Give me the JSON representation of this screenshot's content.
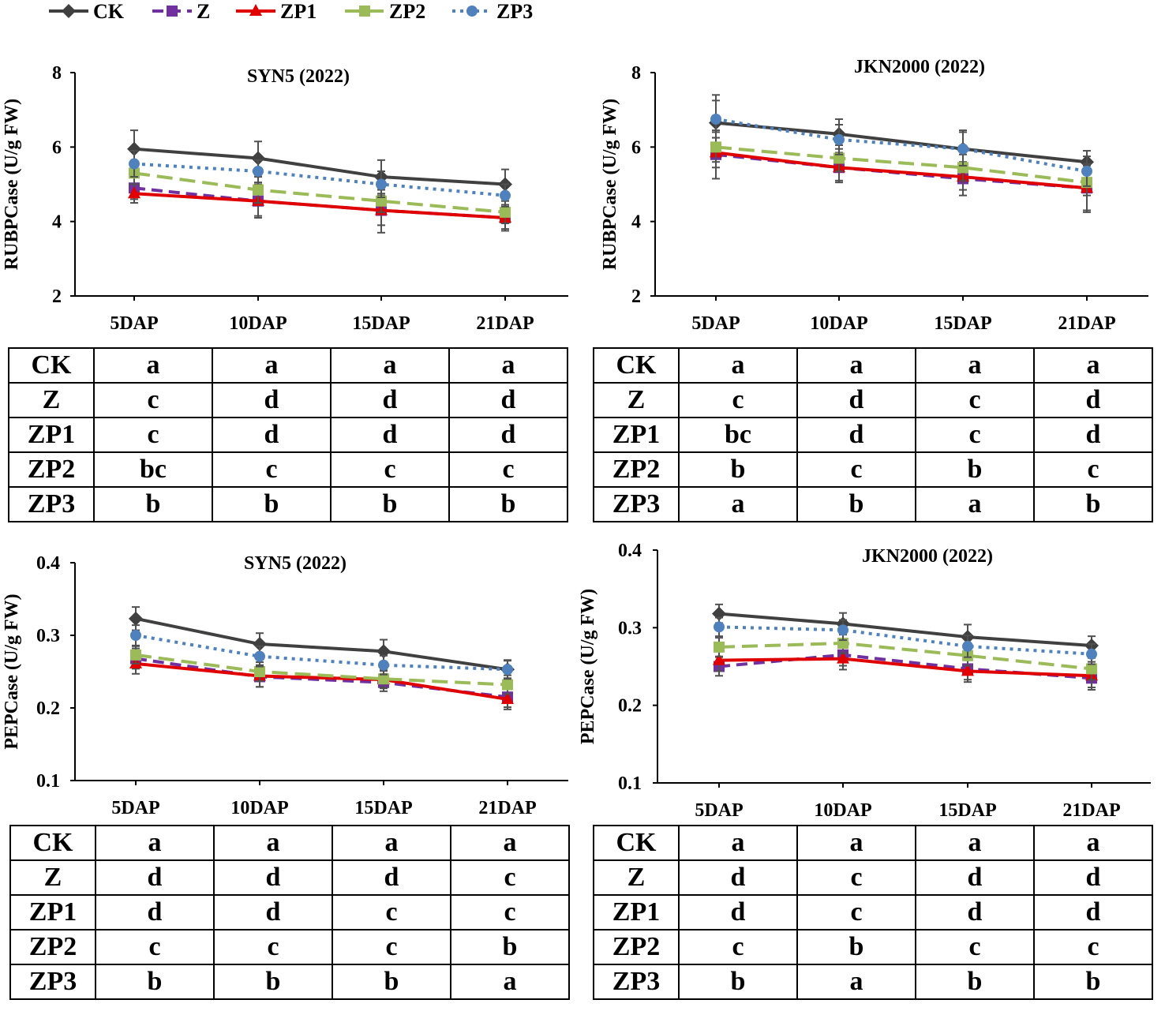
{
  "legend": [
    {
      "name": "CK",
      "color": "#404040",
      "marker": "diamond",
      "dash": "solid"
    },
    {
      "name": "Z",
      "color": "#7030A0",
      "marker": "square",
      "dash": "dash"
    },
    {
      "name": "ZP1",
      "color": "#E00000",
      "marker": "triangle",
      "dash": "solid"
    },
    {
      "name": "ZP2",
      "color": "#9BBB59",
      "marker": "square",
      "dash": "longdash"
    },
    {
      "name": "ZP3",
      "color": "#4F81BD",
      "marker": "circle",
      "dash": "dot"
    }
  ],
  "chart_data": [
    {
      "type": "line",
      "title": "SYN5 (2022)",
      "ylabel": "RUBPCase (U/g FW)",
      "xlabel": "",
      "categories": [
        "5DAP",
        "10DAP",
        "15DAP",
        "21DAP"
      ],
      "ylim": [
        2,
        8
      ],
      "yticks": [
        "2",
        "4",
        "6",
        "8"
      ],
      "series": [
        {
          "name": "CK",
          "values": [
            5.95,
            5.7,
            5.2,
            5.0
          ],
          "errors": [
            0.5,
            0.45,
            0.45,
            0.4
          ]
        },
        {
          "name": "Z",
          "values": [
            4.9,
            4.55,
            4.3,
            4.1
          ],
          "errors": [
            0.3,
            0.4,
            0.4,
            0.3
          ]
        },
        {
          "name": "ZP1",
          "values": [
            4.75,
            4.55,
            4.3,
            4.1
          ],
          "errors": [
            0.25,
            0.45,
            0.6,
            0.35
          ]
        },
        {
          "name": "ZP2",
          "values": [
            5.3,
            4.85,
            4.55,
            4.25
          ],
          "errors": [
            0.3,
            0.35,
            0.3,
            0.3
          ]
        },
        {
          "name": "ZP3",
          "values": [
            5.55,
            5.35,
            5.0,
            4.7
          ],
          "errors": [
            0.35,
            0.3,
            0.35,
            0.3
          ]
        }
      ],
      "letters": {
        "columns": [
          "5DAP",
          "10DAP",
          "15DAP",
          "21DAP"
        ],
        "rows": [
          {
            "label": "CK",
            "values": [
              "a",
              "a",
              "a",
              "a"
            ]
          },
          {
            "label": "Z",
            "values": [
              "c",
              "d",
              "d",
              "d"
            ]
          },
          {
            "label": "ZP1",
            "values": [
              "c",
              "d",
              "d",
              "d"
            ]
          },
          {
            "label": "ZP2",
            "values": [
              "bc",
              "c",
              "c",
              "c"
            ]
          },
          {
            "label": "ZP3",
            "values": [
              "b",
              "b",
              "b",
              "b"
            ]
          }
        ]
      }
    },
    {
      "type": "line",
      "title": "JKN2000 (2022)",
      "ylabel": "RUBPCase (U/g FW)",
      "xlabel": "",
      "categories": [
        "5DAP",
        "10DAP",
        "15DAP",
        "21DAP"
      ],
      "ylim": [
        2,
        8
      ],
      "yticks": [
        "2",
        "4",
        "6",
        "8"
      ],
      "series": [
        {
          "name": "CK",
          "values": [
            6.65,
            6.35,
            5.95,
            5.6
          ],
          "errors": [
            0.75,
            0.4,
            0.5,
            0.3
          ]
        },
        {
          "name": "Z",
          "values": [
            5.8,
            5.45,
            5.15,
            4.9
          ],
          "errors": [
            0.65,
            0.4,
            0.45,
            0.65
          ]
        },
        {
          "name": "ZP1",
          "values": [
            5.85,
            5.45,
            5.2,
            4.9
          ],
          "errors": [
            0.4,
            0.35,
            0.35,
            0.6
          ]
        },
        {
          "name": "ZP2",
          "values": [
            6.0,
            5.7,
            5.45,
            5.05
          ],
          "errors": [
            0.4,
            0.35,
            0.35,
            0.35
          ]
        },
        {
          "name": "ZP3",
          "values": [
            6.75,
            6.2,
            5.95,
            5.35
          ],
          "errors": [
            0.5,
            0.4,
            0.45,
            0.4
          ]
        }
      ],
      "letters": {
        "columns": [
          "5DAP",
          "10DAP",
          "15DAP",
          "21DAP"
        ],
        "rows": [
          {
            "label": "CK",
            "values": [
              "a",
              "a",
              "a",
              "a"
            ]
          },
          {
            "label": "Z",
            "values": [
              "c",
              "d",
              "c",
              "d"
            ]
          },
          {
            "label": "ZP1",
            "values": [
              "bc",
              "d",
              "c",
              "d"
            ]
          },
          {
            "label": "ZP2",
            "values": [
              "b",
              "c",
              "b",
              "c"
            ]
          },
          {
            "label": "ZP3",
            "values": [
              "a",
              "b",
              "a",
              "b"
            ]
          }
        ]
      }
    },
    {
      "type": "line",
      "title": "SYN5 (2022)",
      "ylabel": "PEPCase (U/g FW)",
      "xlabel": "",
      "categories": [
        "5DAP",
        "10DAP",
        "15DAP",
        "21DAP"
      ],
      "ylim": [
        0.1,
        0.4
      ],
      "yticks": [
        "0.1",
        "0.2",
        "0.3",
        "0.4"
      ],
      "series": [
        {
          "name": "CK",
          "values": [
            0.323,
            0.288,
            0.278,
            0.253
          ],
          "errors": [
            0.016,
            0.015,
            0.016,
            0.012
          ]
        },
        {
          "name": "Z",
          "values": [
            0.268,
            0.243,
            0.235,
            0.215
          ],
          "errors": [
            0.014,
            0.014,
            0.012,
            0.014
          ]
        },
        {
          "name": "ZP1",
          "values": [
            0.261,
            0.244,
            0.239,
            0.212
          ],
          "errors": [
            0.014,
            0.015,
            0.012,
            0.014
          ]
        },
        {
          "name": "ZP2",
          "values": [
            0.273,
            0.25,
            0.24,
            0.232
          ],
          "errors": [
            0.012,
            0.013,
            0.012,
            0.013
          ]
        },
        {
          "name": "ZP3",
          "values": [
            0.3,
            0.271,
            0.259,
            0.253
          ],
          "errors": [
            0.014,
            0.014,
            0.013,
            0.013
          ]
        }
      ],
      "letters": {
        "columns": [
          "5DAP",
          "10DAP",
          "15DAP",
          "21DAP"
        ],
        "rows": [
          {
            "label": "CK",
            "values": [
              "a",
              "a",
              "a",
              "a"
            ]
          },
          {
            "label": "Z",
            "values": [
              "d",
              "d",
              "d",
              "c"
            ]
          },
          {
            "label": "ZP1",
            "values": [
              "d",
              "d",
              "c",
              "c"
            ]
          },
          {
            "label": "ZP2",
            "values": [
              "c",
              "c",
              "c",
              "b"
            ]
          },
          {
            "label": "ZP3",
            "values": [
              "b",
              "b",
              "b",
              "a"
            ]
          }
        ]
      }
    },
    {
      "type": "line",
      "title": "JKN2000 (2022)",
      "ylabel": "PEPCase (U/g FW)",
      "xlabel": "",
      "categories": [
        "5DAP",
        "10DAP",
        "15DAP",
        "21DAP"
      ],
      "ylim": [
        0.1,
        0.4
      ],
      "yticks": [
        "0.1",
        "0.2",
        "0.3",
        "0.4"
      ],
      "series": [
        {
          "name": "CK",
          "values": [
            0.318,
            0.305,
            0.288,
            0.277
          ],
          "errors": [
            0.012,
            0.014,
            0.016,
            0.012
          ]
        },
        {
          "name": "Z",
          "values": [
            0.25,
            0.265,
            0.247,
            0.235
          ],
          "errors": [
            0.012,
            0.014,
            0.014,
            0.012
          ]
        },
        {
          "name": "ZP1",
          "values": [
            0.258,
            0.26,
            0.244,
            0.238
          ],
          "errors": [
            0.014,
            0.014,
            0.014,
            0.018
          ]
        },
        {
          "name": "ZP2",
          "values": [
            0.275,
            0.28,
            0.264,
            0.247
          ],
          "errors": [
            0.012,
            0.013,
            0.013,
            0.014
          ]
        },
        {
          "name": "ZP3",
          "values": [
            0.301,
            0.297,
            0.276,
            0.266
          ],
          "errors": [
            0.012,
            0.013,
            0.014,
            0.013
          ]
        }
      ],
      "letters": {
        "columns": [
          "5DAP",
          "10DAP",
          "15DAP",
          "21DAP"
        ],
        "rows": [
          {
            "label": "CK",
            "values": [
              "a",
              "a",
              "a",
              "a"
            ]
          },
          {
            "label": "Z",
            "values": [
              "d",
              "c",
              "d",
              "d"
            ]
          },
          {
            "label": "ZP1",
            "values": [
              "d",
              "c",
              "d",
              "d"
            ]
          },
          {
            "label": "ZP2",
            "values": [
              "c",
              "b",
              "c",
              "c"
            ]
          },
          {
            "label": "ZP3",
            "values": [
              "b",
              "a",
              "b",
              "b"
            ]
          }
        ]
      }
    }
  ]
}
